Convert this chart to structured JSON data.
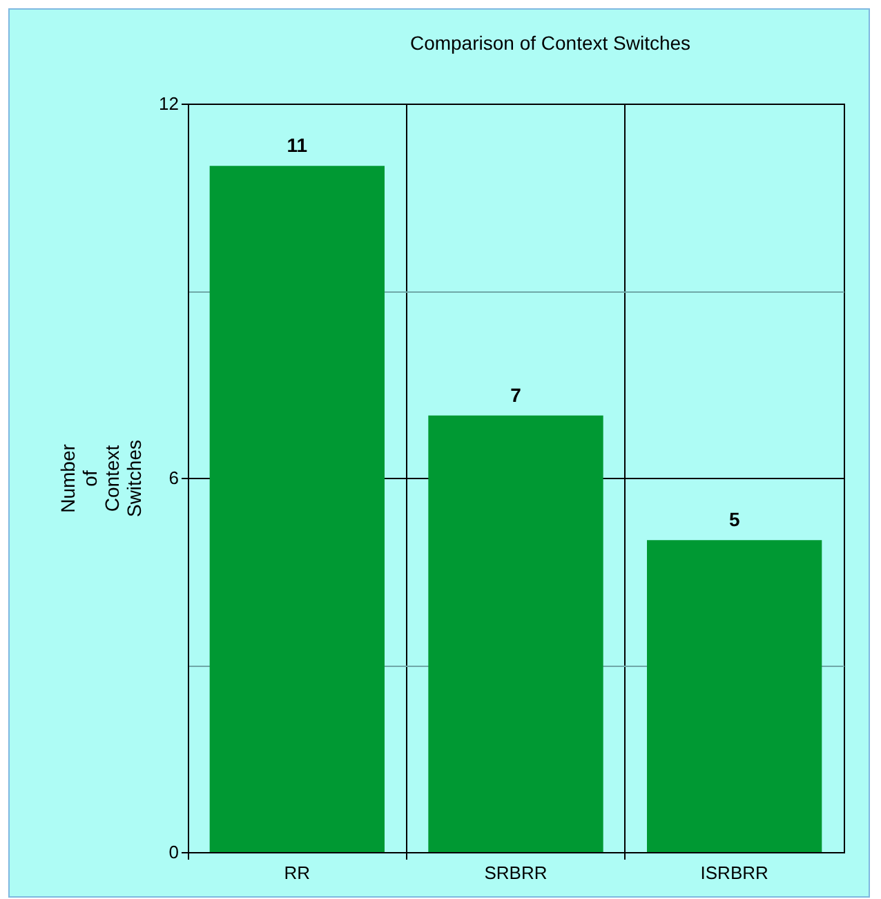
{
  "chart_data": {
    "type": "bar",
    "title": "Comparison of Context Switches",
    "ylabel": "Number of Context Switches",
    "categories": [
      "RR",
      "SRBRR",
      "ISRBRR"
    ],
    "values": [
      11,
      7,
      5
    ],
    "color": "#009933",
    "ylim": [
      0,
      12
    ],
    "yticks": [
      0,
      {
        "value": 3,
        "label": null
      },
      6,
      {
        "value": 9,
        "label": null
      },
      12
    ],
    "grid": true,
    "data_labels": true
  }
}
